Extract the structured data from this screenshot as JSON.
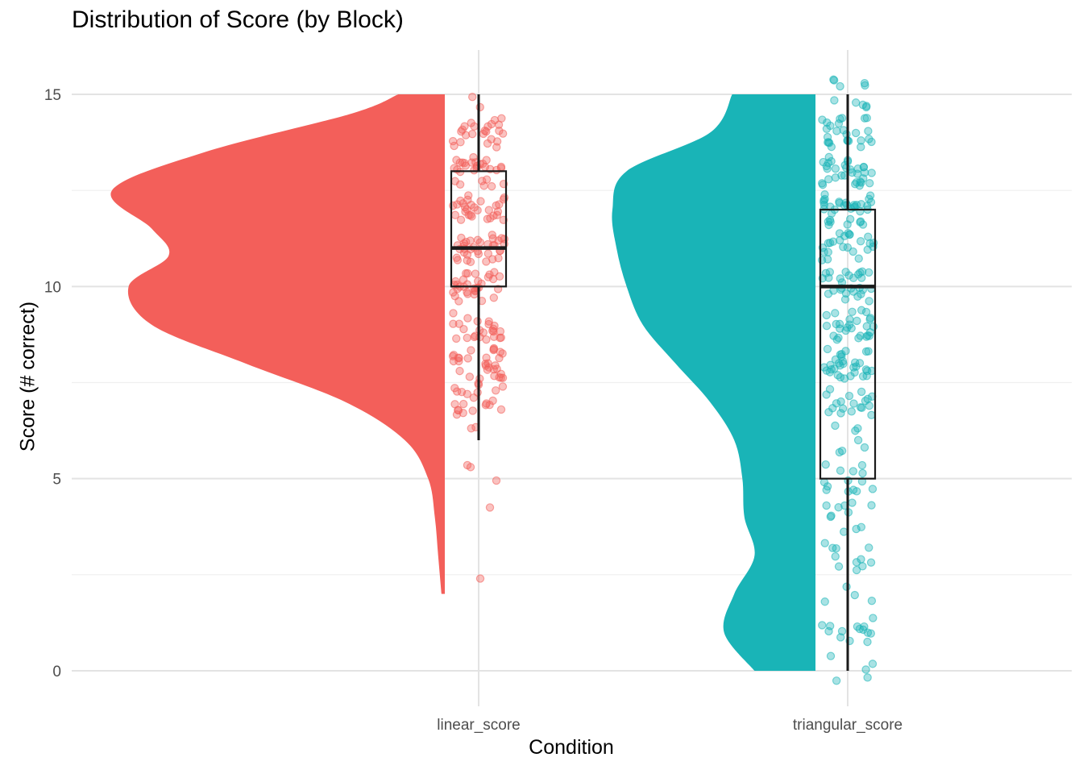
{
  "chart_data": {
    "type": "raincloud",
    "title": "Distribution of Score (by Block)",
    "xlabel": "Condition",
    "ylabel": "Score (# correct)",
    "ylim": [
      -0.8,
      16.0
    ],
    "y_ticks": [
      0,
      5,
      10,
      15
    ],
    "grid": true,
    "legend": "none",
    "categories": [
      "linear_score",
      "triangular_score"
    ],
    "series": [
      {
        "name": "linear_score",
        "color": "#F35F5A",
        "box": {
          "lower_whisker": 6,
          "q1": 10,
          "median": 11,
          "q3": 13,
          "upper_whisker": 15
        },
        "density_range": [
          2,
          15
        ],
        "density": [
          [
            2,
            0.01
          ],
          [
            3,
            0.02
          ],
          [
            4,
            0.03
          ],
          [
            5,
            0.05
          ],
          [
            6,
            0.12
          ],
          [
            7,
            0.3
          ],
          [
            8,
            0.6
          ],
          [
            9,
            0.88
          ],
          [
            10,
            0.95
          ],
          [
            10.8,
            0.83
          ],
          [
            11.5,
            0.88
          ],
          [
            12.5,
            1.0
          ],
          [
            13.5,
            0.72
          ],
          [
            14.5,
            0.28
          ],
          [
            15,
            0.14
          ]
        ],
        "outliers": [
          5.35,
          5.3,
          4.95,
          4.25,
          2.4
        ]
      },
      {
        "name": "triangular_score",
        "color": "#19B4B7",
        "box": {
          "lower_whisker": 0,
          "q1": 5,
          "median": 10,
          "q3": 12,
          "upper_whisker": 15
        },
        "density_range": [
          0,
          15
        ],
        "density": [
          [
            0,
            0.3
          ],
          [
            1,
            0.45
          ],
          [
            2,
            0.4
          ],
          [
            3,
            0.3
          ],
          [
            4,
            0.35
          ],
          [
            5,
            0.36
          ],
          [
            6,
            0.4
          ],
          [
            7,
            0.52
          ],
          [
            8,
            0.69
          ],
          [
            9,
            0.85
          ],
          [
            10,
            0.93
          ],
          [
            11,
            0.98
          ],
          [
            12,
            1.0
          ],
          [
            13,
            0.93
          ],
          [
            14,
            0.52
          ],
          [
            15,
            0.41
          ]
        ]
      }
    ]
  }
}
